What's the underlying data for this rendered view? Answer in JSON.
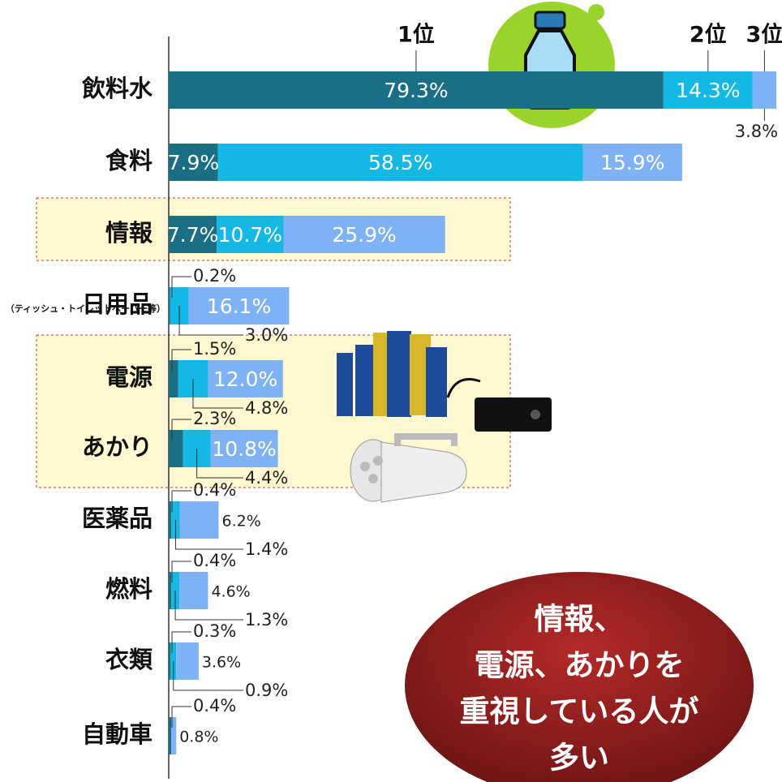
{
  "chart_data": {
    "type": "bar",
    "orientation": "horizontal",
    "stacked": true,
    "categories": [
      "飲料水",
      "食料",
      "情報",
      "日用品",
      "電源",
      "あかり",
      "医薬品",
      "燃料",
      "衣類",
      "自動車"
    ],
    "category_note": "（ティッシュ・トイレットペーパー等）",
    "xlim": [
      0,
      100
    ],
    "series": [
      {
        "name": "1位",
        "color": "#1b6f84",
        "values": [
          79.3,
          7.9,
          7.7,
          0.2,
          1.5,
          2.3,
          0.4,
          0.4,
          0.3,
          0.4
        ],
        "value_labels": [
          "79.3%",
          "7.9%",
          "7.7%",
          "0.2%",
          "1.5%",
          "2.3%",
          "0.4%",
          "0.4%",
          "0.3%",
          "0.4%"
        ]
      },
      {
        "name": "2位",
        "color": "#13b8e4",
        "values": [
          14.3,
          58.5,
          10.7,
          3.0,
          4.8,
          4.4,
          1.4,
          1.3,
          0.9,
          null
        ],
        "value_labels": [
          "14.3%",
          "58.5%",
          "10.7%",
          "3.0%",
          "4.8%",
          "4.4%",
          "1.4%",
          "1.3%",
          "0.9%",
          null
        ]
      },
      {
        "name": "3位",
        "color": "#7eb2f4",
        "values": [
          3.8,
          15.9,
          25.9,
          16.1,
          12.0,
          10.8,
          6.2,
          4.6,
          3.6,
          0.8
        ],
        "value_labels": [
          "3.8%",
          "15.9%",
          "25.9%",
          "16.1%",
          "12.0%",
          "10.8%",
          "6.2%",
          "4.6%",
          "3.6%",
          "0.8%"
        ]
      }
    ],
    "annotation": [
      "情報、",
      "電源、あかりを",
      "重視している人が",
      "多い"
    ]
  }
}
